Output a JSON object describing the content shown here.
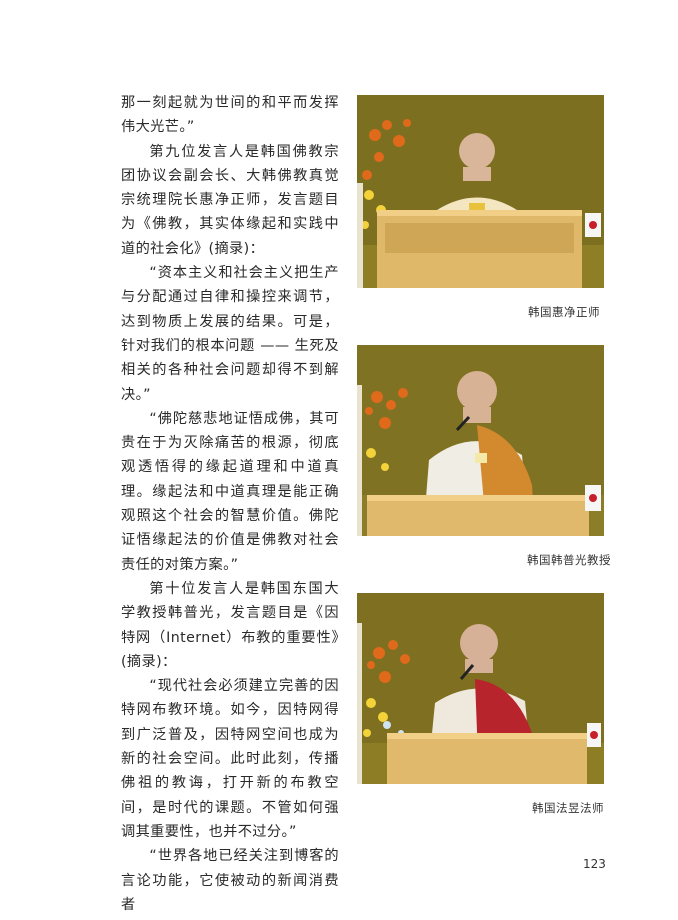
{
  "body_text": [
    "那一刻起就为世间的和平而发挥伟大光芒。”",
    "第九位发言人是韩国佛教宗团协议会副会长、大韩佛教真觉宗统理院长惠净正师，发言题目为《佛教，其实体缘起和实践中道的社会化》(摘录)：",
    "“资本主义和社会主义把生产与分配通过自律和操控来调节，达到物质上发展的结果。可是，针对我们的根本问题 —— 生死及相关的各种社会问题却得不到解决。”",
    "“佛陀慈悲地证悟成佛，其可贵在于为灭除痛苦的根源，彻底观透悟得的缘起道理和中道真理。缘起法和中道真理是能正确观照这个社会的智慧价值。佛陀证悟缘起法的价值是佛教对社会责任的对策方案。”",
    "第十位发言人是韩国东国大学教授韩普光，发言题目是《因特网（Internet）布教的重要性》(摘录)：",
    "“现代社会必须建立完善的因特网布教环境。如今，因特网得到广泛普及，因特网空间也成为新的社会空间。此时此刻，传播佛祖的教诲，打开新的布教空间，是时代的课题。不管如何强调其重要性，也并不过分。”",
    "“世界各地已经关注到博客的言论功能，它使被动的新闻消费者"
  ],
  "captions": {
    "photo1": "韩国惠净正师",
    "photo2": "韩国韩普光教授",
    "photo3": "韩国法昱法师"
  },
  "page_number": "123"
}
